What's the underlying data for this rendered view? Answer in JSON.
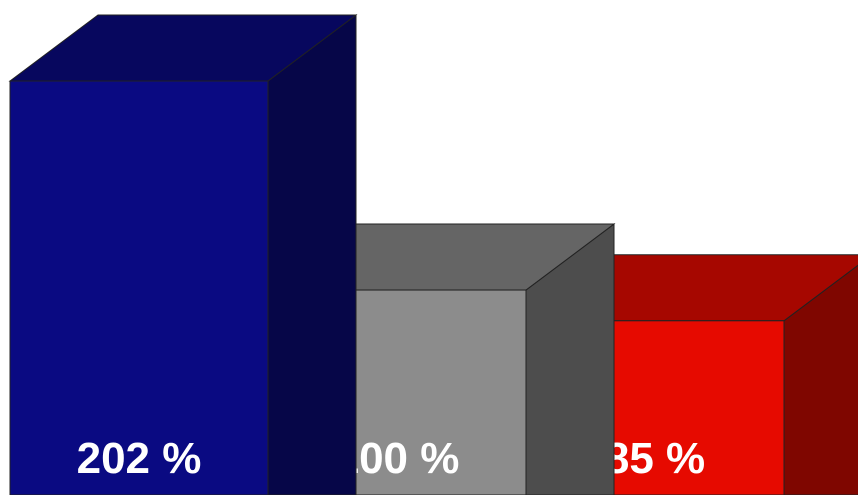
{
  "chart_data": {
    "type": "bar",
    "style": "3d",
    "categories": [
      "",
      "",
      ""
    ],
    "values": [
      202,
      100,
      85
    ],
    "labels": [
      "202 %",
      "100 %",
      "85 %"
    ],
    "colors": [
      "#0a0a82",
      "#8c8c8c",
      "#e60a00"
    ],
    "unit": "%",
    "title": "",
    "xlabel": "",
    "ylabel": "",
    "ylim": [
      0,
      202
    ],
    "grid": false,
    "legend": "none"
  }
}
